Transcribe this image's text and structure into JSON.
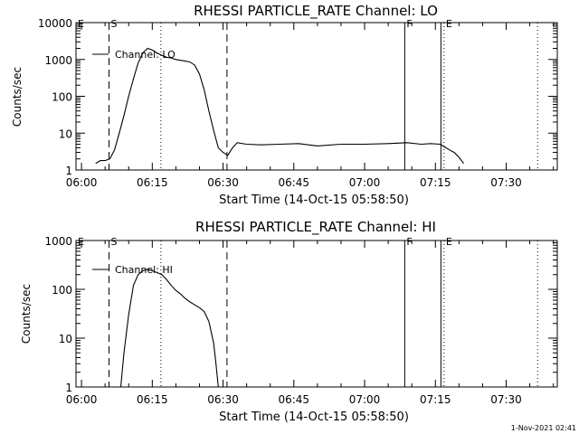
{
  "footer": {
    "timestamp": "1-Nov-2021 02:41"
  },
  "chart_data": [
    {
      "type": "line",
      "title": "RHESSI PARTICLE_RATE Channel: LO",
      "xlabel": "Start Time (14-Oct-15 05:58:50)",
      "ylabel": "Counts/sec",
      "yscale": "log",
      "xlim": [
        "05:58:50",
        "07:40:50"
      ],
      "ylim": [
        1,
        10000
      ],
      "xticks": [
        "06:00",
        "06:15",
        "06:30",
        "06:45",
        "07:00",
        "07:15",
        "07:30"
      ],
      "yticks": [
        "1",
        "10",
        "100",
        "1000",
        "10000"
      ],
      "legend": "Channel: LO",
      "legend_position": "top-left",
      "markers": [
        {
          "label": "E",
          "time": "05:58:50",
          "style": "edge"
        },
        {
          "label": "S",
          "time": "06:05:50",
          "style": "dashed"
        },
        {
          "label": "",
          "time": "06:16:50",
          "style": "dotted"
        },
        {
          "label": "",
          "time": "06:30:50",
          "style": "dashed"
        },
        {
          "label": "F",
          "time": "07:08:30",
          "style": "solid"
        },
        {
          "label": "",
          "time": "07:16:10",
          "style": "solid"
        },
        {
          "label": "E",
          "time": "07:16:50",
          "style": "dotted"
        },
        {
          "label": "",
          "time": "07:36:40",
          "style": "dotted"
        }
      ],
      "series": [
        {
          "name": "Channel: LO",
          "x": [
            "06:03:00",
            "06:04:00",
            "06:05:00",
            "06:06:00",
            "06:07:00",
            "06:08:00",
            "06:09:00",
            "06:10:00",
            "06:11:00",
            "06:12:00",
            "06:13:00",
            "06:14:00",
            "06:15:00",
            "06:16:00",
            "06:17:00",
            "06:18:00",
            "06:19:00",
            "06:20:00",
            "06:21:00",
            "06:22:00",
            "06:23:00",
            "06:24:00",
            "06:25:00",
            "06:26:00",
            "06:27:00",
            "06:28:00",
            "06:29:00",
            "06:30:00",
            "06:31:00",
            "06:32:00",
            "06:33:00",
            "06:35:00",
            "06:38:00",
            "06:42:00",
            "06:46:00",
            "06:50:00",
            "06:55:00",
            "07:00:00",
            "07:05:00",
            "07:09:00",
            "07:12:00",
            "07:14:00",
            "07:16:00",
            "07:17:00",
            "07:18:00",
            "07:19:00",
            "07:20:00",
            "07:21:00"
          ],
          "y": [
            1.5,
            1.8,
            1.8,
            2,
            3.5,
            10,
            30,
            100,
            300,
            800,
            1500,
            2000,
            1800,
            1500,
            1300,
            1150,
            1100,
            1000,
            950,
            900,
            850,
            700,
            400,
            150,
            40,
            12,
            4,
            3,
            2.5,
            4,
            5.5,
            5,
            4.8,
            5,
            5.2,
            4.5,
            5,
            5,
            5.2,
            5.5,
            5,
            5.2,
            5,
            4.2,
            3.5,
            3,
            2.2,
            1.5
          ]
        }
      ]
    },
    {
      "type": "line",
      "title": "RHESSI PARTICLE_RATE Channel: HI",
      "xlabel": "Start Time (14-Oct-15 05:58:50)",
      "ylabel": "Counts/sec",
      "yscale": "log",
      "xlim": [
        "05:58:50",
        "07:40:50"
      ],
      "ylim": [
        1,
        1000
      ],
      "xticks": [
        "06:00",
        "06:15",
        "06:30",
        "06:45",
        "07:00",
        "07:15",
        "07:30"
      ],
      "yticks": [
        "1",
        "10",
        "100",
        "1000"
      ],
      "legend": "Channel: HI",
      "legend_position": "top-left",
      "markers": [
        {
          "label": "E",
          "time": "05:58:50",
          "style": "edge"
        },
        {
          "label": "S",
          "time": "06:05:50",
          "style": "dashed"
        },
        {
          "label": "",
          "time": "06:16:50",
          "style": "dotted"
        },
        {
          "label": "",
          "time": "06:30:50",
          "style": "dashed"
        },
        {
          "label": "F",
          "time": "07:08:30",
          "style": "solid"
        },
        {
          "label": "",
          "time": "07:16:10",
          "style": "solid"
        },
        {
          "label": "E",
          "time": "07:16:50",
          "style": "dotted"
        },
        {
          "label": "",
          "time": "07:36:40",
          "style": "dotted"
        }
      ],
      "series": [
        {
          "name": "Channel: HI",
          "x": [
            "06:08:20",
            "06:09:00",
            "06:10:00",
            "06:11:00",
            "06:12:00",
            "06:13:00",
            "06:14:00",
            "06:15:00",
            "06:16:00",
            "06:17:00",
            "06:18:00",
            "06:19:00",
            "06:20:00",
            "06:21:00",
            "06:22:00",
            "06:23:00",
            "06:24:00",
            "06:25:00",
            "06:26:00",
            "06:27:00",
            "06:28:00",
            "06:28:30",
            "06:29:00"
          ],
          "y": [
            1,
            5,
            30,
            120,
            200,
            240,
            260,
            240,
            220,
            200,
            160,
            120,
            95,
            80,
            65,
            55,
            48,
            42,
            35,
            22,
            8,
            3,
            1
          ]
        }
      ]
    }
  ]
}
